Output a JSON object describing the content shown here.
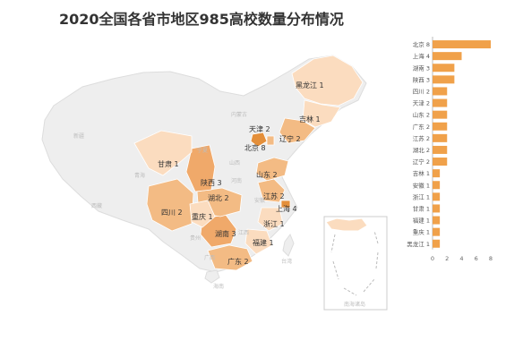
{
  "title": "2020全国各省市地区985高校数量分布情况",
  "colors": {
    "accent": "#f0a14a",
    "map_base": "#eeeeee",
    "map_border": "#dddddd",
    "map_light": "#fbdcbf",
    "map_mid": "#f3bb84",
    "map_dark": "#e48f3a"
  },
  "map_faint_labels": [
    "新疆",
    "西藏",
    "青海",
    "内蒙古",
    "宁夏",
    "山西",
    "贵州",
    "广西",
    "江西",
    "台湾",
    "海南",
    "河南",
    "安徽"
  ],
  "inset_label": "南海诸岛",
  "chart_data": {
    "type": "bar",
    "orientation": "horizontal",
    "categories": [
      "北京",
      "上海",
      "湖南",
      "陕西",
      "四川",
      "天津",
      "山东",
      "广东",
      "江苏",
      "湖北",
      "辽宁",
      "吉林",
      "安徽",
      "浙江",
      "甘肃",
      "福建",
      "重庆",
      "黑龙江"
    ],
    "values": [
      8,
      4,
      3,
      3,
      2,
      2,
      2,
      2,
      2,
      2,
      2,
      1,
      1,
      1,
      1,
      1,
      1,
      1
    ],
    "xlim": [
      0,
      8
    ],
    "xticks": [
      "0",
      "2",
      "4",
      "6",
      "8"
    ],
    "grid": false,
    "legend": "none"
  },
  "map_labels": [
    {
      "province": "北京",
      "value": 8,
      "text": "北京 8"
    },
    {
      "province": "天津",
      "value": 2,
      "text": "天津 2"
    },
    {
      "province": "辽宁",
      "value": 2,
      "text": "辽宁 2"
    },
    {
      "province": "吉林",
      "value": 1,
      "text": "吉林 1"
    },
    {
      "province": "黑龙江",
      "value": 1,
      "text": "黑龙江 1"
    },
    {
      "province": "山东",
      "value": 2,
      "text": "山东 2"
    },
    {
      "province": "江苏",
      "value": 2,
      "text": "江苏 2"
    },
    {
      "province": "上海",
      "value": 4,
      "text": "上海 4"
    },
    {
      "province": "浙江",
      "value": 1,
      "text": "浙江 1"
    },
    {
      "province": "福建",
      "value": 1,
      "text": "福建 1"
    },
    {
      "province": "广东",
      "value": 2,
      "text": "广东 2"
    },
    {
      "province": "湖南",
      "value": 3,
      "text": "湖南 3"
    },
    {
      "province": "湖北",
      "value": 2,
      "text": "湖北 2"
    },
    {
      "province": "陕西",
      "value": 3,
      "text": "陕西 3"
    },
    {
      "province": "甘肃",
      "value": 1,
      "text": "甘肃 1"
    },
    {
      "province": "四川",
      "value": 2,
      "text": "四川 2"
    },
    {
      "province": "重庆",
      "value": 1,
      "text": "重庆 1"
    }
  ]
}
